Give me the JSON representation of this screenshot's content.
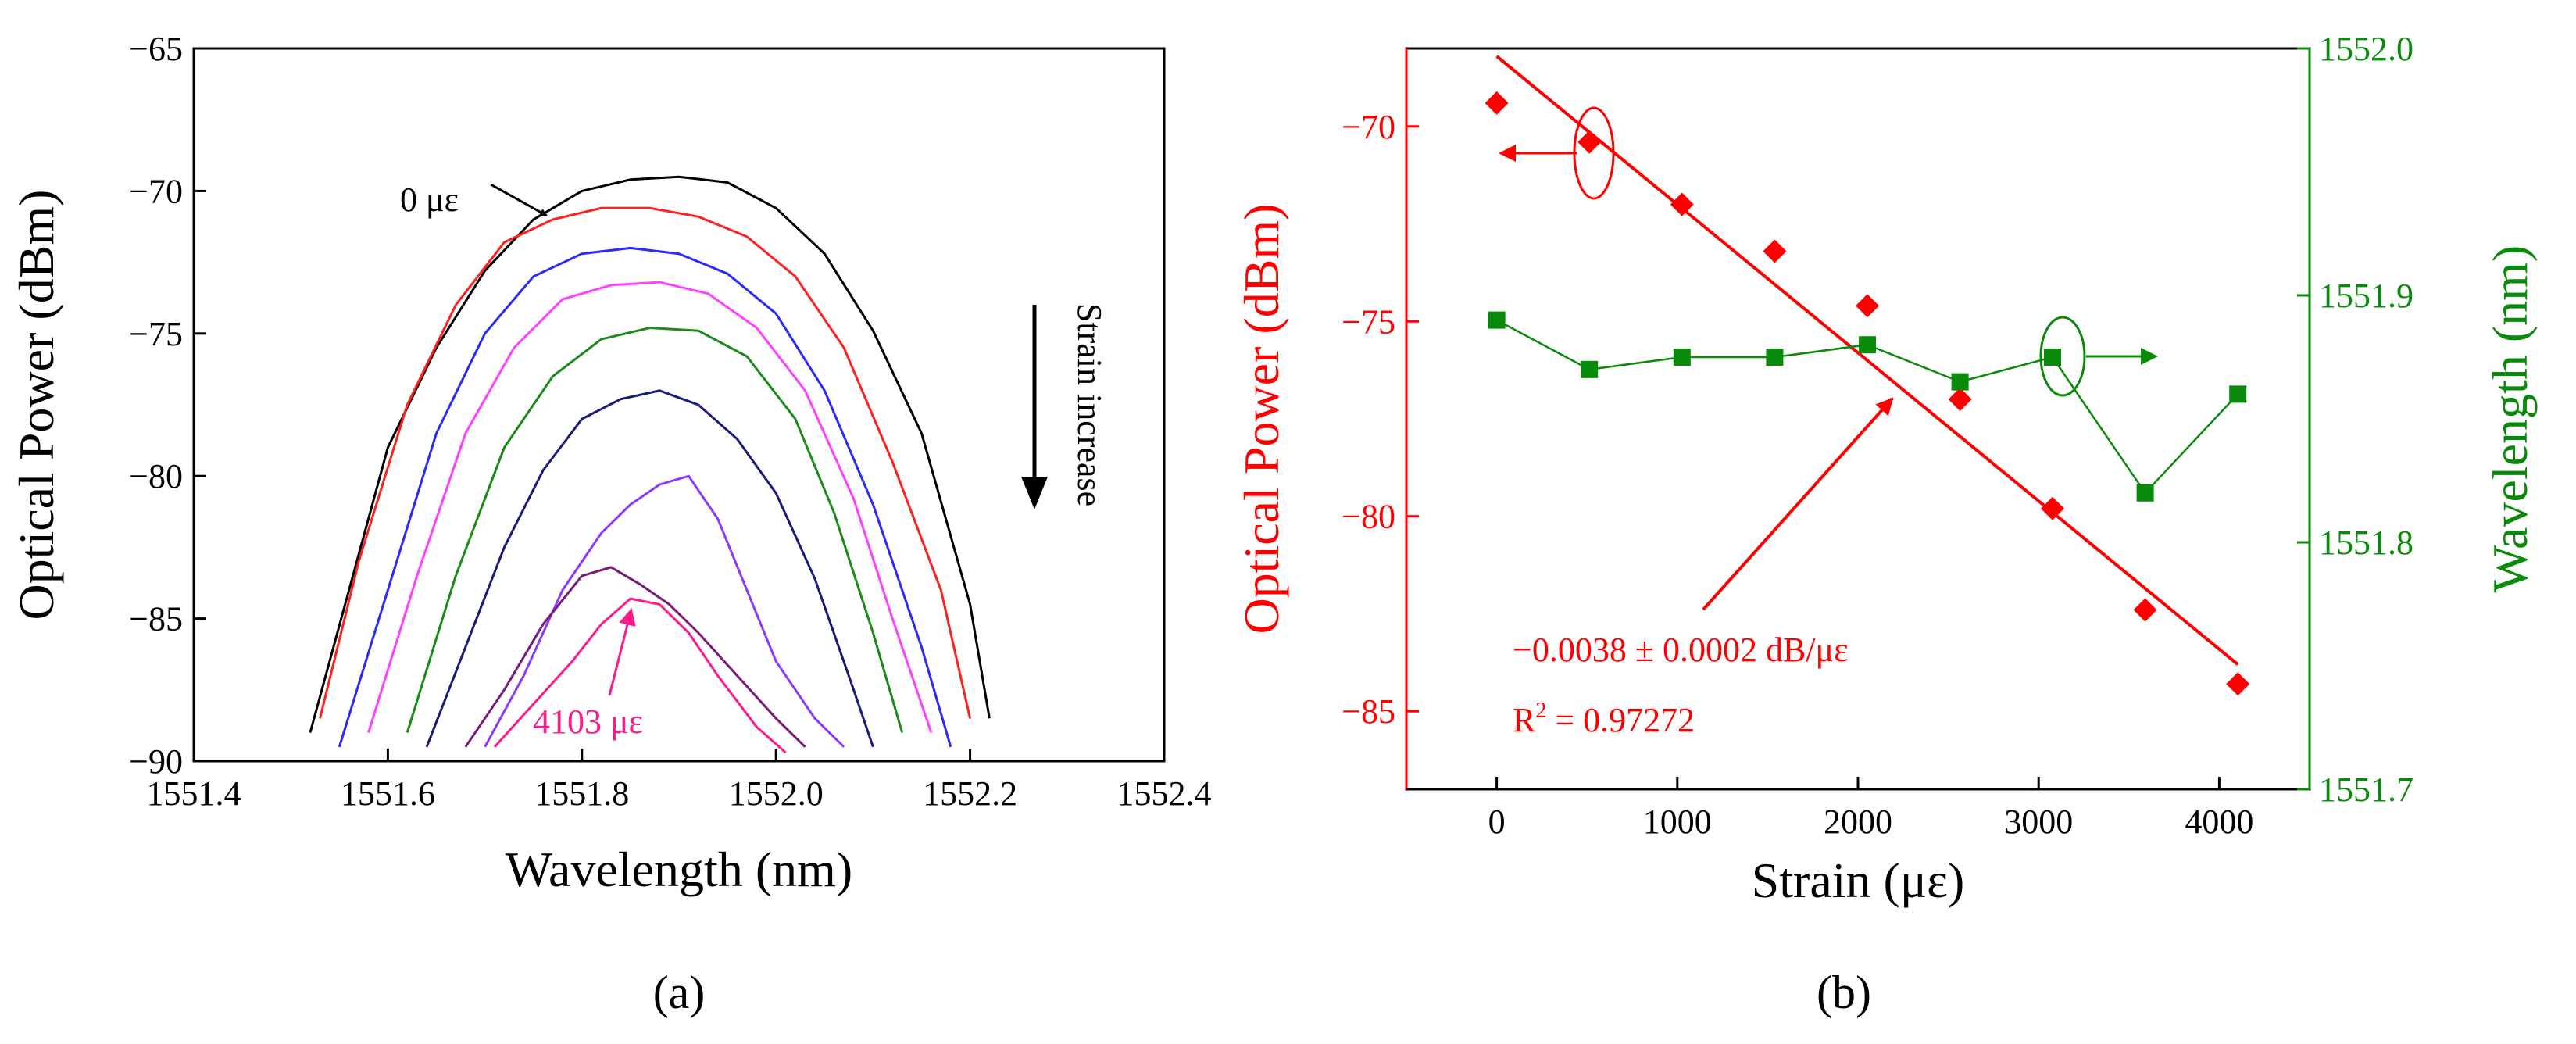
{
  "chart_data": [
    {
      "panel": "(a)",
      "type": "line",
      "xlabel": "Wavelength (nm)",
      "ylabel": "Optical Power (dBm)",
      "xlim": [
        1551.4,
        1552.4
      ],
      "ylim": [
        -90,
        -65
      ],
      "xticks": [
        "1551.4",
        "1551.6",
        "1551.8",
        "1552.0",
        "1552.2",
        "1552.4"
      ],
      "yticks": [
        "−90",
        "−85",
        "−80",
        "−75",
        "−70",
        "−65"
      ],
      "grid": false,
      "annotations": {
        "first_curve": "0 με",
        "last_curve": "4103 με",
        "trend": "Strain increase"
      },
      "series": [
        {
          "color": "#000000",
          "x": [
            1551.52,
            1551.56,
            1551.6,
            1551.65,
            1551.7,
            1551.75,
            1551.8,
            1551.85,
            1551.9,
            1551.95,
            1552.0,
            1552.05,
            1552.1,
            1552.15,
            1552.2,
            1552.22
          ],
          "y": [
            -89,
            -84,
            -79,
            -75.5,
            -72.8,
            -71,
            -70,
            -69.6,
            -69.5,
            -69.7,
            -70.6,
            -72.2,
            -74.9,
            -78.5,
            -84.5,
            -88.5
          ]
        },
        {
          "color": "#ff2020",
          "x": [
            1551.53,
            1551.57,
            1551.62,
            1551.67,
            1551.72,
            1551.77,
            1551.82,
            1551.87,
            1551.92,
            1551.97,
            1552.02,
            1552.07,
            1552.12,
            1552.17,
            1552.2
          ],
          "y": [
            -88.5,
            -83,
            -77.5,
            -74,
            -71.8,
            -71,
            -70.6,
            -70.6,
            -70.9,
            -71.6,
            -73,
            -75.5,
            -79.5,
            -84,
            -88.5
          ]
        },
        {
          "color": "#2a2aff",
          "x": [
            1551.55,
            1551.6,
            1551.65,
            1551.7,
            1551.75,
            1551.8,
            1551.85,
            1551.9,
            1551.95,
            1552.0,
            1552.05,
            1552.1,
            1552.15,
            1552.18
          ],
          "y": [
            -89.5,
            -84,
            -78.5,
            -75,
            -73,
            -72.2,
            -72,
            -72.2,
            -72.9,
            -74.3,
            -77,
            -81,
            -86,
            -89.5
          ]
        },
        {
          "color": "#ff40ff",
          "x": [
            1551.58,
            1551.63,
            1551.68,
            1551.73,
            1551.78,
            1551.83,
            1551.88,
            1551.93,
            1551.98,
            1552.03,
            1552.08,
            1552.12,
            1552.16
          ],
          "y": [
            -89,
            -83.5,
            -78.5,
            -75.5,
            -73.8,
            -73.3,
            -73.2,
            -73.6,
            -74.8,
            -77,
            -80.8,
            -85,
            -89
          ]
        },
        {
          "color": "#1a8a1a",
          "x": [
            1551.62,
            1551.67,
            1551.72,
            1551.77,
            1551.82,
            1551.87,
            1551.92,
            1551.97,
            1552.02,
            1552.06,
            1552.1,
            1552.13
          ],
          "y": [
            -89,
            -83.5,
            -79,
            -76.5,
            -75.2,
            -74.8,
            -74.9,
            -75.8,
            -78,
            -81.3,
            -85.5,
            -89
          ]
        },
        {
          "color": "#1a1a7a",
          "x": [
            1551.64,
            1551.68,
            1551.72,
            1551.76,
            1551.8,
            1551.84,
            1551.88,
            1551.92,
            1551.96,
            1552.0,
            1552.04,
            1552.08,
            1552.1
          ],
          "y": [
            -89.5,
            -86,
            -82.5,
            -79.8,
            -78,
            -77.3,
            -77,
            -77.5,
            -78.7,
            -80.6,
            -83.6,
            -87.5,
            -89.5
          ]
        },
        {
          "color": "#8a3aff",
          "x": [
            1551.7,
            1551.74,
            1551.78,
            1551.82,
            1551.85,
            1551.88,
            1551.91,
            1551.94,
            1551.97,
            1552.0,
            1552.04,
            1552.07
          ],
          "y": [
            -89.5,
            -87,
            -84,
            -82,
            -81,
            -80.3,
            -80,
            -81.5,
            -84,
            -86.5,
            -88.5,
            -89.5
          ]
        },
        {
          "color": "#7a1a7a",
          "x": [
            1551.68,
            1551.72,
            1551.76,
            1551.8,
            1551.83,
            1551.86,
            1551.89,
            1551.92,
            1551.96,
            1552.0,
            1552.03
          ],
          "y": [
            -89.5,
            -87.5,
            -85.2,
            -83.5,
            -83.2,
            -83.8,
            -84.5,
            -85.5,
            -87,
            -88.5,
            -89.5
          ]
        },
        {
          "color": "#ff1a8a",
          "x": [
            1551.71,
            1551.75,
            1551.79,
            1551.82,
            1551.85,
            1551.88,
            1551.91,
            1551.94,
            1551.98,
            1552.01
          ],
          "y": [
            -89.5,
            -88,
            -86.5,
            -85.2,
            -84.3,
            -84.5,
            -85.5,
            -87,
            -88.8,
            -89.7
          ]
        }
      ]
    },
    {
      "panel": "(b)",
      "type": "scatter",
      "xlabel": "Strain (με)",
      "ylabel": "Optical Power (dBm)",
      "y2label": "Wavelength (nm)",
      "xlim": [
        -500,
        4500
      ],
      "ylim": [
        -87,
        -68
      ],
      "y2lim": [
        1551.7,
        1552.0
      ],
      "xticks": [
        "0",
        "1000",
        "2000",
        "3000",
        "4000"
      ],
      "yticks": [
        "−85",
        "−80",
        "−75",
        "−70"
      ],
      "y2ticks": [
        "1551.7",
        "1551.8",
        "1551.9",
        "1552.0"
      ],
      "grid": false,
      "series": [
        {
          "axis": "left",
          "marker": "diamond",
          "color": "#ff0000",
          "x": [
            0,
            513,
            1026,
            1539,
            2052,
            2565,
            3077,
            3590,
            4103
          ],
          "y": [
            -69.4,
            -70.4,
            -72,
            -73.2,
            -74.6,
            -77,
            -79.8,
            -82.4,
            -84.3
          ]
        },
        {
          "axis": "right",
          "marker": "square",
          "color": "#0a8a0a",
          "x": [
            0,
            513,
            1026,
            1539,
            2052,
            2565,
            3077,
            3590,
            4103
          ],
          "y": [
            1551.89,
            1551.87,
            1551.875,
            1551.875,
            1551.88,
            1551.865,
            1551.875,
            1551.82,
            1551.86
          ]
        }
      ],
      "fit": {
        "axis": "left",
        "color": "#ff0000",
        "x": [
          0,
          4103
        ],
        "y": [
          -68.2,
          -83.8
        ],
        "label": "−0.0038 ± 0.0002 dB/με",
        "r2_prefix": "R",
        "r2_sup": "2",
        "r2_value": " = 0.97272"
      }
    }
  ],
  "strain_arrow_label": "Strain increase"
}
